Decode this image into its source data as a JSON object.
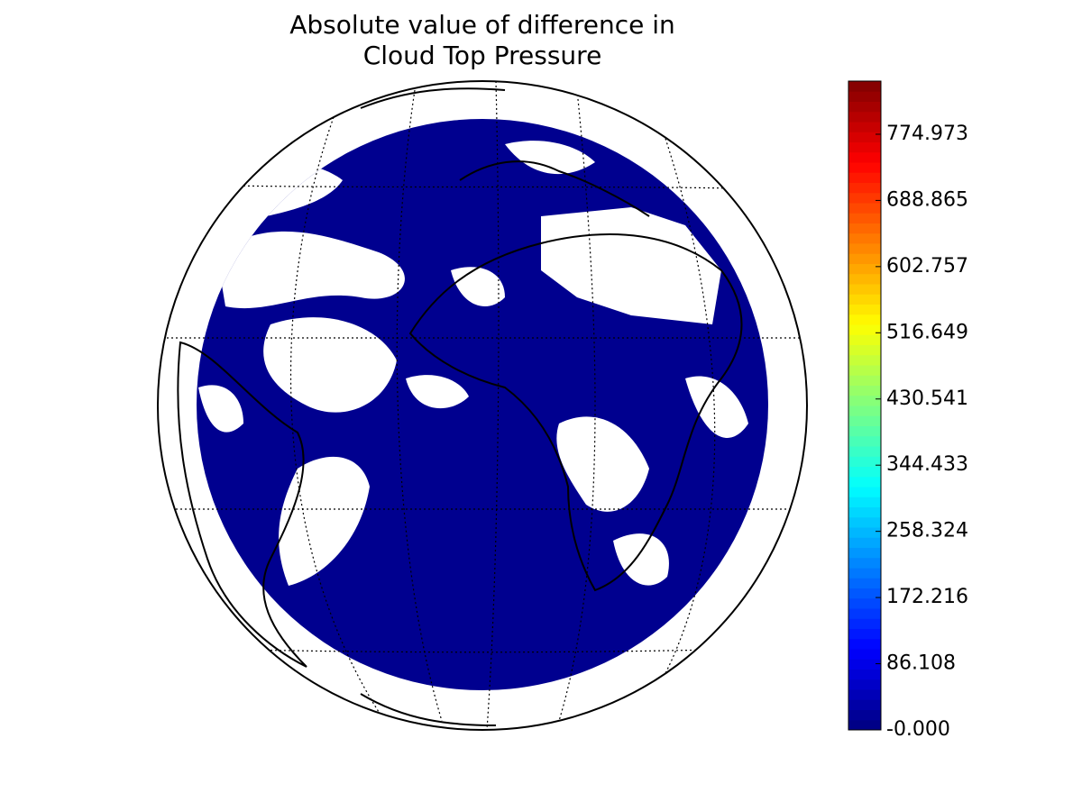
{
  "chart_data": {
    "type": "map",
    "title": [
      "Absolute value of difference in",
      "Cloud Top Pressure"
    ],
    "colorbar": {
      "colormap": "jet",
      "clim": [
        0,
        844.1
      ],
      "ticks": [
        {
          "value": 0,
          "label": "-0.000"
        },
        {
          "value": 86.108,
          "label": "86.108"
        },
        {
          "value": 172.216,
          "label": "172.216"
        },
        {
          "value": 258.324,
          "label": "258.324"
        },
        {
          "value": 344.433,
          "label": "344.433"
        },
        {
          "value": 430.541,
          "label": "430.541"
        },
        {
          "value": 516.649,
          "label": "516.649"
        },
        {
          "value": 602.757,
          "label": "602.757"
        },
        {
          "value": 688.865,
          "label": "688.865"
        },
        {
          "value": 774.973,
          "label": "774.973"
        }
      ]
    }
  }
}
